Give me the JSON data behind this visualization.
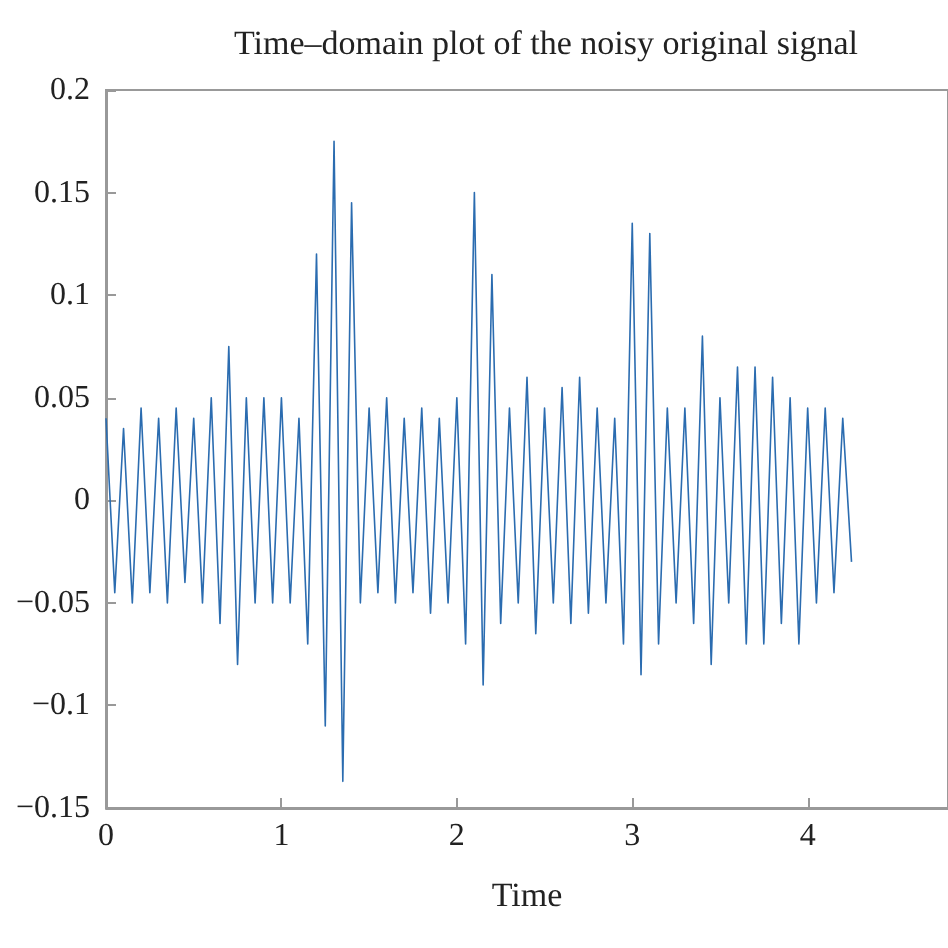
{
  "chart_data": {
    "type": "line",
    "title": "Time–domain plot of the noisy original signal",
    "xlabel": "Time",
    "x": [
      0,
      0.05,
      0.1,
      0.15,
      0.2,
      0.25,
      0.3,
      0.35,
      0.4,
      0.45,
      0.5,
      0.55,
      0.6,
      0.65,
      0.7,
      0.75,
      0.8,
      0.85,
      0.9,
      0.95,
      1,
      1.05,
      1.1,
      1.15,
      1.2,
      1.25,
      1.3,
      1.35,
      1.4,
      1.45,
      1.5,
      1.55,
      1.6,
      1.65,
      1.7,
      1.75,
      1.8,
      1.85,
      1.9,
      1.95,
      2,
      2.05,
      2.1,
      2.15,
      2.2,
      2.25,
      2.3,
      2.35,
      2.4,
      2.45,
      2.5,
      2.55,
      2.6,
      2.65,
      2.7,
      2.75,
      2.8,
      2.85,
      2.9,
      2.95,
      3,
      3.05,
      3.1,
      3.15,
      3.2,
      3.25,
      3.3,
      3.35,
      3.4,
      3.45,
      3.5,
      3.55,
      3.6,
      3.65,
      3.7,
      3.75,
      3.8,
      3.85,
      3.9,
      3.95,
      4,
      4.05,
      4.1,
      4.15,
      4.2,
      4.25
    ],
    "series": [
      {
        "color": "#2b6cb0",
        "values": [
          0.04,
          -0.045,
          0.035,
          -0.05,
          0.045,
          -0.045,
          0.04,
          -0.05,
          0.045,
          -0.04,
          0.04,
          -0.05,
          0.05,
          -0.06,
          0.075,
          -0.08,
          0.05,
          -0.05,
          0.05,
          -0.05,
          0.05,
          -0.05,
          0.04,
          -0.07,
          0.12,
          -0.11,
          0.175,
          -0.137,
          0.145,
          -0.05,
          0.045,
          -0.045,
          0.05,
          -0.05,
          0.04,
          -0.045,
          0.045,
          -0.055,
          0.04,
          -0.05,
          0.05,
          -0.07,
          0.15,
          -0.09,
          0.11,
          -0.06,
          0.045,
          -0.05,
          0.06,
          -0.065,
          0.045,
          -0.05,
          0.055,
          -0.06,
          0.06,
          -0.055,
          0.045,
          -0.05,
          0.04,
          -0.07,
          0.135,
          -0.085,
          0.13,
          -0.07,
          0.045,
          -0.05,
          0.045,
          -0.06,
          0.08,
          -0.08,
          0.05,
          -0.05,
          0.065,
          -0.07,
          0.065,
          -0.07,
          0.06,
          -0.06,
          0.05,
          -0.07,
          0.045,
          -0.05,
          0.045,
          -0.045,
          0.04,
          -0.03
        ]
      }
    ],
    "xlim": [
      0,
      4.8
    ],
    "xticks": [
      0,
      1,
      2,
      3,
      4
    ],
    "ylim": [
      -0.15,
      0.2
    ],
    "yticks": [
      -0.15,
      -0.1,
      -0.05,
      0,
      0.05,
      0.1,
      0.15,
      0.2
    ],
    "grid": false,
    "marker": "none",
    "line_style": "solid"
  }
}
